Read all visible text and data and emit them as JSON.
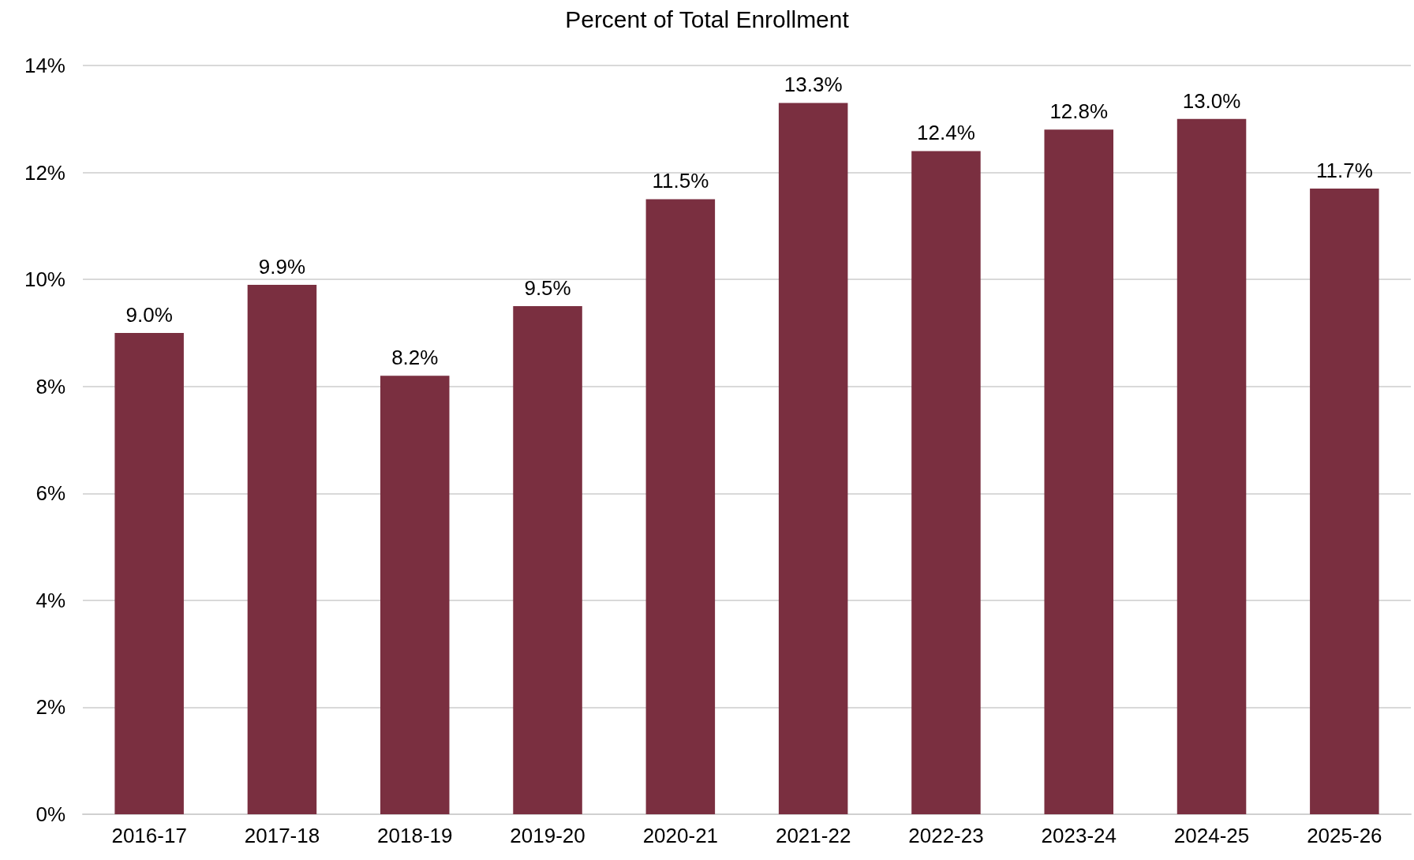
{
  "chart_data": {
    "type": "bar",
    "title": "Percent of Total Enrollment",
    "categories": [
      "2016-17",
      "2017-18",
      "2018-19",
      "2019-20",
      "2020-21",
      "2021-22",
      "2022-23",
      "2023-24",
      "2024-25",
      "2025-26"
    ],
    "values": [
      9.0,
      9.9,
      8.2,
      9.5,
      11.5,
      13.3,
      12.4,
      12.8,
      13.0,
      11.7
    ],
    "value_labels": [
      "9.0%",
      "9.9%",
      "8.2%",
      "9.5%",
      "11.5%",
      "13.3%",
      "12.4%",
      "12.8%",
      "13.0%",
      "11.7%"
    ],
    "color": "#7a2f40",
    "ylim": [
      0,
      14
    ],
    "yticks": [
      {
        "value": 0,
        "label": "0%"
      },
      {
        "value": 2,
        "label": "2%"
      },
      {
        "value": 4,
        "label": "4%"
      },
      {
        "value": 6,
        "label": "6%"
      },
      {
        "value": 8,
        "label": "8%"
      },
      {
        "value": 10,
        "label": "10%"
      },
      {
        "value": 12,
        "label": "12%"
      },
      {
        "value": 14,
        "label": "14%"
      }
    ],
    "grid": "y"
  }
}
